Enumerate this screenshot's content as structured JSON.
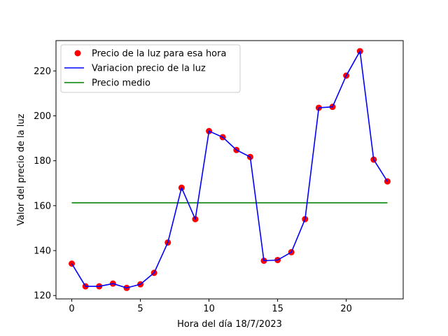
{
  "chart_data": {
    "type": "line",
    "title": "",
    "xlabel": "Hora del día 18/7/2023",
    "ylabel": "Valor del precio de la luz",
    "xlim": [
      -1.15,
      24.15
    ],
    "ylim": [
      118.5,
      233.5
    ],
    "xticks": [
      0,
      5,
      10,
      15,
      20
    ],
    "yticks": [
      120,
      140,
      160,
      180,
      200,
      220
    ],
    "grid": false,
    "legend_position": "top-left",
    "x": [
      0,
      1,
      2,
      3,
      4,
      5,
      6,
      7,
      8,
      9,
      10,
      11,
      12,
      13,
      14,
      15,
      16,
      17,
      18,
      19,
      20,
      21,
      22,
      23
    ],
    "series": [
      {
        "name": "Precio de la luz para esa hora",
        "kind": "scatter",
        "color": "#ff0000",
        "values": [
          134.2,
          124.1,
          124.1,
          125.3,
          123.4,
          125.0,
          130.1,
          143.6,
          168.0,
          154.0,
          193.2,
          190.5,
          184.8,
          181.7,
          135.5,
          135.8,
          139.3,
          154.0,
          203.6,
          204.0,
          217.9,
          228.8,
          180.5,
          170.8
        ]
      },
      {
        "name": "Variacion precio de la luz",
        "kind": "line",
        "color": "#0000ff",
        "values": [
          134.2,
          124.1,
          124.1,
          125.3,
          123.4,
          125.0,
          130.1,
          143.6,
          168.0,
          154.0,
          193.2,
          190.5,
          184.8,
          181.7,
          135.5,
          135.8,
          139.3,
          154.0,
          203.6,
          204.0,
          217.9,
          228.8,
          180.5,
          170.8
        ]
      },
      {
        "name": "Precio medio",
        "kind": "hline",
        "color": "#008000",
        "value": 161.3,
        "x_range": [
          0,
          23
        ]
      }
    ]
  }
}
